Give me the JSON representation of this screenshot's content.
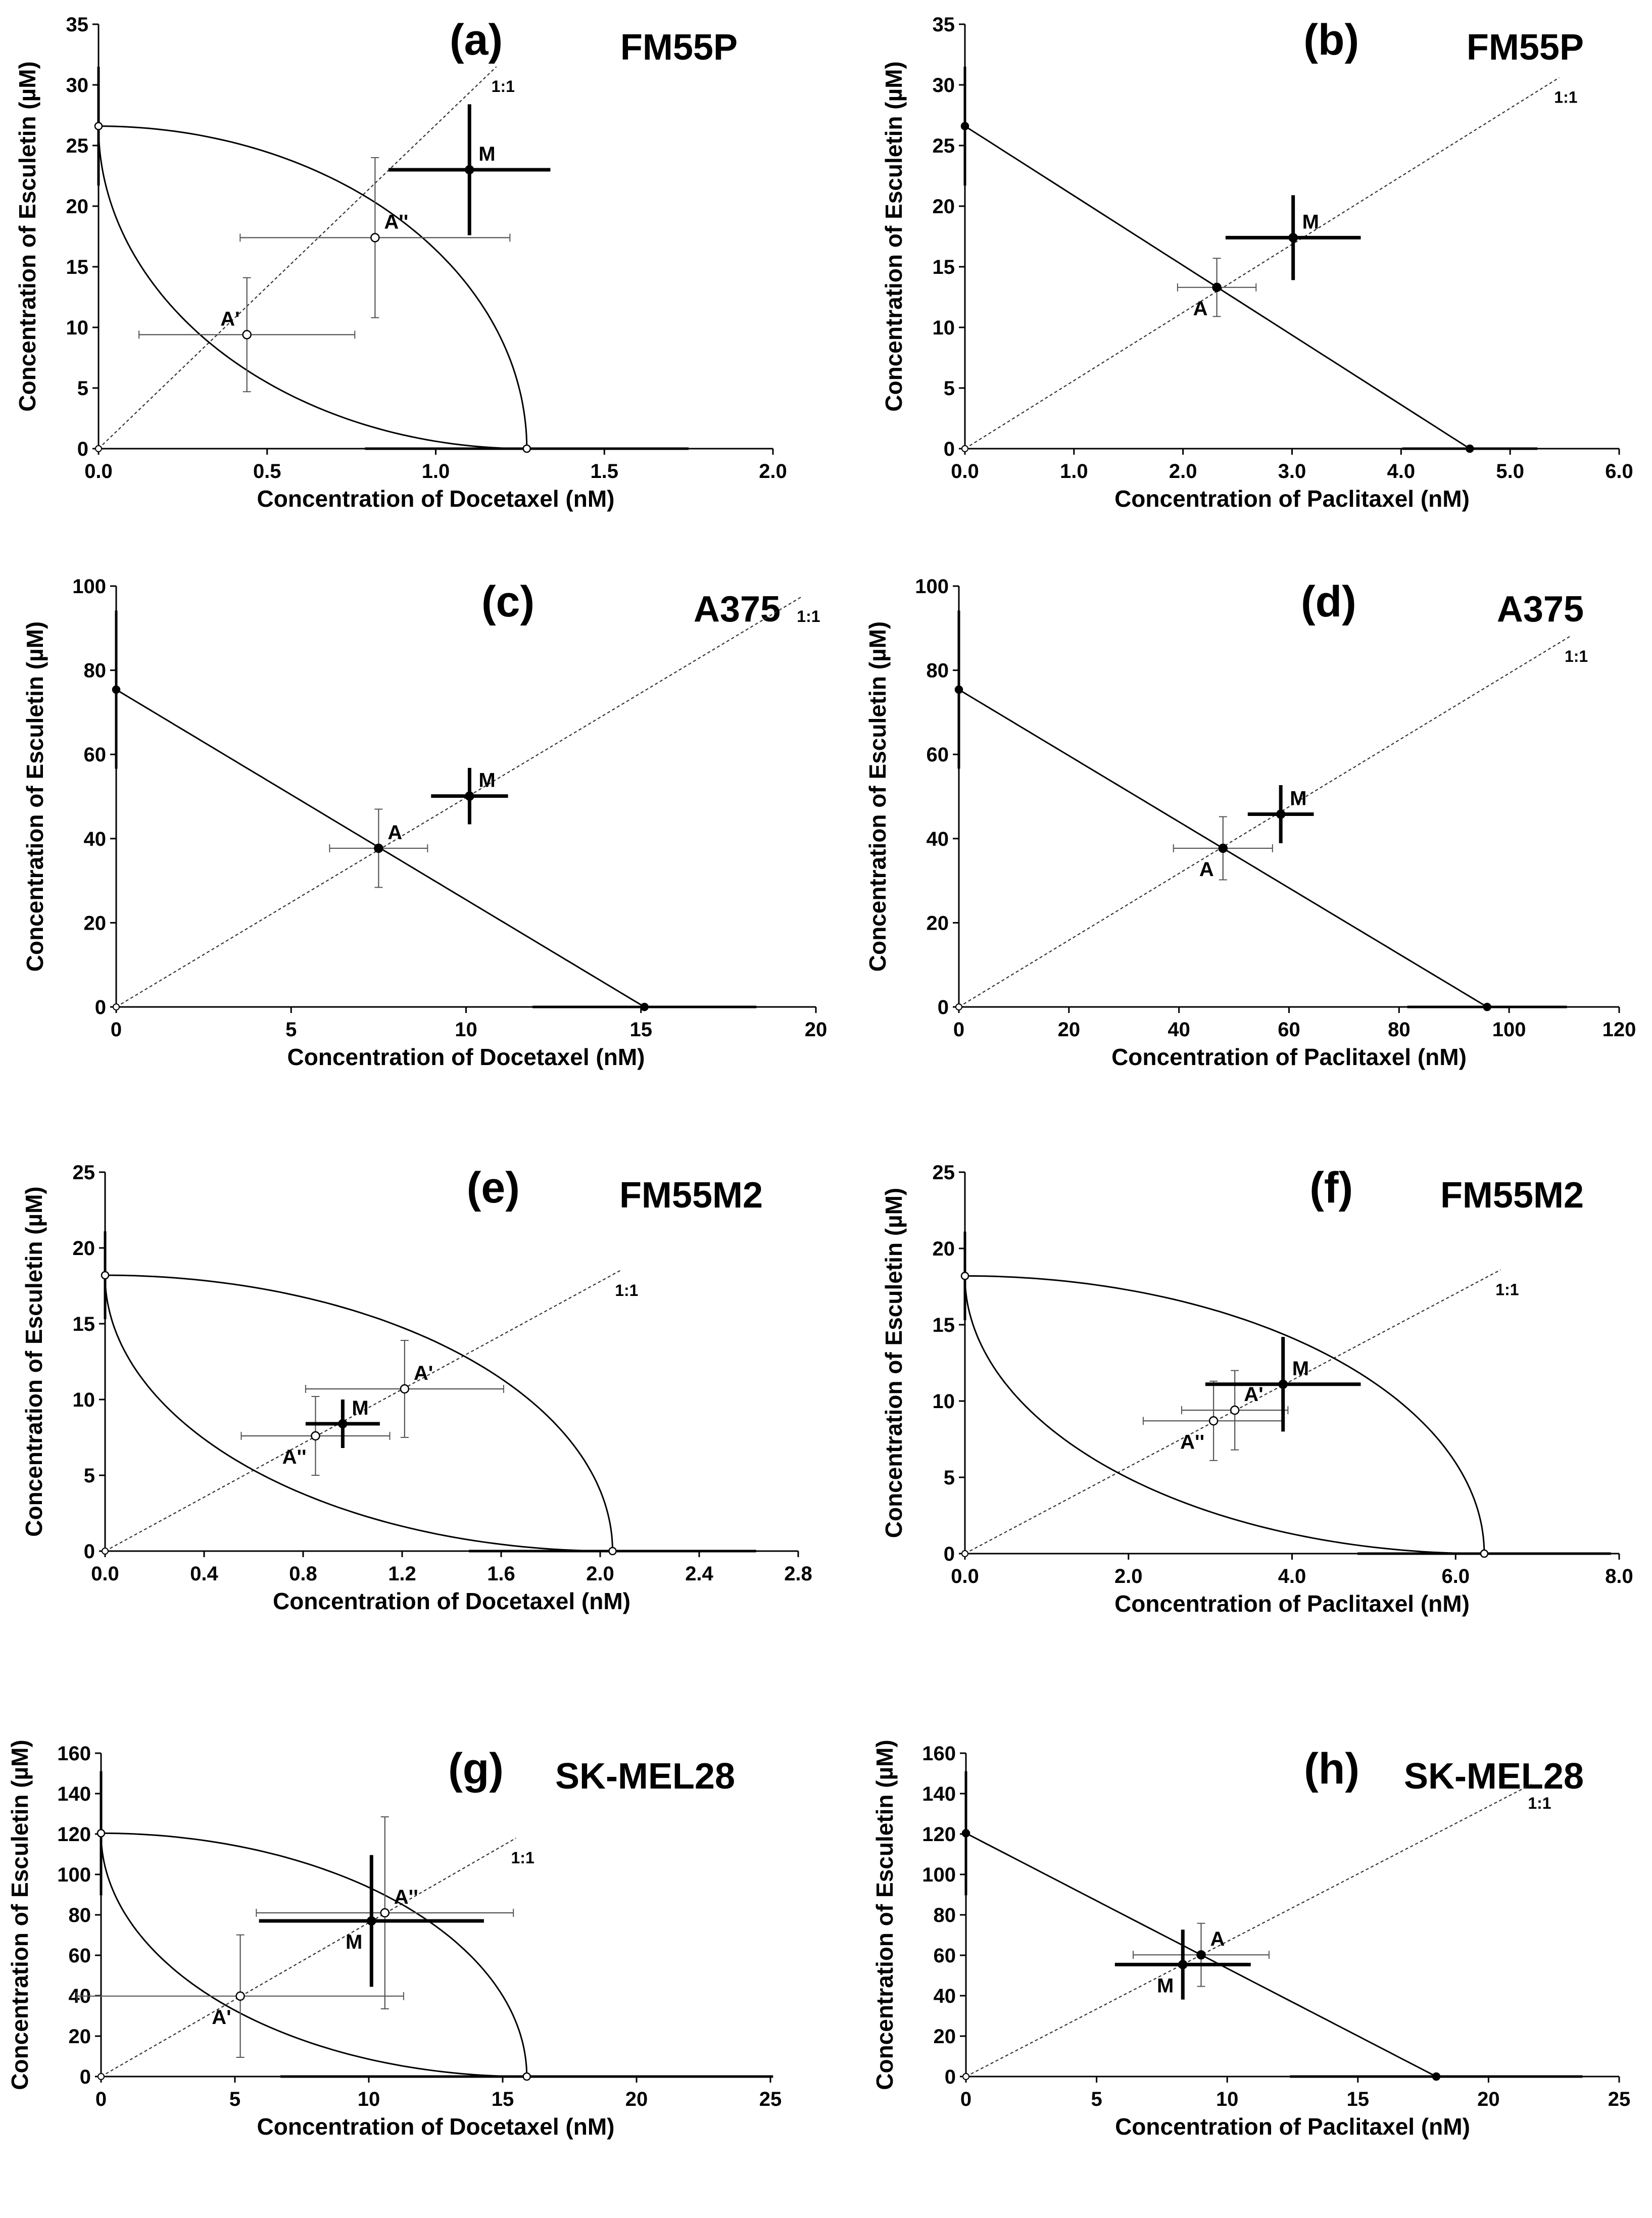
{
  "chart_data": [
    {
      "type": "line",
      "panel_label": "(a)",
      "cell_line": "FM55P",
      "xlabel": "Concentration of Docetaxel (nM)",
      "ylabel": "Concentration of Esculetin (µM)",
      "xlim": [
        0,
        2.0
      ],
      "ylim": [
        0,
        35
      ],
      "xticks": [
        "0.0",
        "0.5",
        "1.0",
        "1.5",
        "2.0"
      ],
      "yticks": [
        "0",
        "5",
        "10",
        "15",
        "20",
        "25",
        "30",
        "35"
      ],
      "x_ec50": 1.27,
      "y_ec50": 26.6,
      "x_sd": 0.48,
      "y_sd": 4.9,
      "ratio_label": "1:1",
      "ratio_end": [
        1.18,
        31.5
      ],
      "isoboles": [
        "upper",
        "lower"
      ],
      "points": [
        {
          "label": "A'",
          "x": 0.44,
          "y": 9.4,
          "sx": 0.32,
          "sy": 4.7,
          "style": "open",
          "label_pos": "upper-left"
        },
        {
          "label": "A''",
          "x": 0.82,
          "y": 17.4,
          "sx": 0.4,
          "sy": 6.6,
          "style": "open",
          "label_pos": "upper-right"
        },
        {
          "label": "M",
          "x": 1.1,
          "y": 23.0,
          "sx": 0.24,
          "sy": 5.4,
          "style": "bold",
          "label_pos": "upper-right"
        }
      ]
    },
    {
      "type": "line",
      "panel_label": "(b)",
      "cell_line": "FM55P",
      "xlabel": "Concentration of Paclitaxel (nM)",
      "ylabel": "Concentration of Esculetin (µM)",
      "xlim": [
        0,
        6.0
      ],
      "ylim": [
        0,
        35
      ],
      "xticks": [
        "0.0",
        "1.0",
        "2.0",
        "3.0",
        "4.0",
        "5.0",
        "6.0"
      ],
      "yticks": [
        "0",
        "5",
        "10",
        "15",
        "20",
        "25",
        "30",
        "35"
      ],
      "x_ec50": 4.63,
      "y_ec50": 26.6,
      "x_sd": 0.62,
      "y_sd": 4.9,
      "ratio_label": "1:1",
      "ratio_end": [
        5.45,
        30.6
      ],
      "isoboles": [
        "linear"
      ],
      "points": [
        {
          "label": "A",
          "x": 2.31,
          "y": 13.3,
          "sx": 0.36,
          "sy": 2.4,
          "style": "filled",
          "label_pos": "lower-left"
        },
        {
          "label": "M",
          "x": 3.01,
          "y": 17.4,
          "sx": 0.62,
          "sy": 3.5,
          "style": "bold",
          "label_pos": "upper-right"
        }
      ]
    },
    {
      "type": "line",
      "panel_label": "(c)",
      "cell_line": "A375",
      "xlabel": "Concentration of Docetaxel (nM)",
      "ylabel": "Concentration of Esculetin (µM)",
      "xlim": [
        0,
        20
      ],
      "ylim": [
        0,
        100
      ],
      "xticks": [
        "0",
        "5",
        "10",
        "15",
        "20"
      ],
      "yticks": [
        "0",
        "20",
        "40",
        "60",
        "80",
        "100"
      ],
      "x_ec50": 15.1,
      "y_ec50": 75.4,
      "x_sd": 3.2,
      "y_sd": 18.8,
      "ratio_label": "1:1",
      "ratio_end": [
        19.6,
        97.5
      ],
      "isoboles": [
        "linear"
      ],
      "points": [
        {
          "label": "A",
          "x": 7.5,
          "y": 37.7,
          "sx": 1.4,
          "sy": 9.3,
          "style": "filled",
          "label_pos": "upper-right"
        },
        {
          "label": "M",
          "x": 10.1,
          "y": 50.1,
          "sx": 1.1,
          "sy": 6.7,
          "style": "bold",
          "label_pos": "upper-right"
        }
      ]
    },
    {
      "type": "line",
      "panel_label": "(d)",
      "cell_line": "A375",
      "xlabel": "Concentration of Paclitaxel (nM)",
      "ylabel": "Concentration of Esculetin (µM)",
      "xlim": [
        0,
        120
      ],
      "ylim": [
        0,
        100
      ],
      "xticks": [
        "0",
        "20",
        "40",
        "60",
        "80",
        "100",
        "120"
      ],
      "yticks": [
        "0",
        "20",
        "40",
        "60",
        "80",
        "100"
      ],
      "x_ec50": 96.0,
      "y_ec50": 75.4,
      "x_sd": 14.5,
      "y_sd": 18.8,
      "ratio_label": "1:1",
      "ratio_end": [
        111,
        88
      ],
      "isoboles": [
        "linear"
      ],
      "points": [
        {
          "label": "A",
          "x": 48.0,
          "y": 37.7,
          "sx": 9.0,
          "sy": 7.5,
          "style": "filled",
          "label_pos": "lower-left"
        },
        {
          "label": "M",
          "x": 58.5,
          "y": 45.8,
          "sx": 6.0,
          "sy": 6.9,
          "style": "bold",
          "label_pos": "upper-right"
        }
      ]
    },
    {
      "type": "line",
      "panel_label": "(e)",
      "cell_line": "FM55M2",
      "xlabel": "Concentration of Docetaxel (nM)",
      "ylabel": "Concentration of Esculetin (µM)",
      "xlim": [
        0,
        2.8
      ],
      "ylim": [
        0,
        25
      ],
      "xticks": [
        "0.0",
        "0.4",
        "0.8",
        "1.2",
        "1.6",
        "2.0",
        "2.4",
        "2.8"
      ],
      "yticks": [
        "0",
        "5",
        "10",
        "15",
        "20",
        "25"
      ],
      "x_ec50": 2.05,
      "y_ec50": 18.2,
      "x_sd": 0.58,
      "y_sd": 2.9,
      "ratio_label": "1:1",
      "ratio_end": [
        2.08,
        18.5
      ],
      "isoboles": [
        "upper",
        "lower"
      ],
      "points": [
        {
          "label": "A'",
          "x": 1.21,
          "y": 10.7,
          "sx": 0.4,
          "sy": 3.2,
          "style": "open",
          "label_pos": "upper-right"
        },
        {
          "label": "A''",
          "x": 0.85,
          "y": 7.6,
          "sx": 0.3,
          "sy": 2.6,
          "style": "open",
          "label_pos": "lower-left"
        },
        {
          "label": "M",
          "x": 0.96,
          "y": 8.4,
          "sx": 0.15,
          "sy": 1.6,
          "style": "bold",
          "label_pos": "upper-right"
        }
      ]
    },
    {
      "type": "line",
      "panel_label": "(f)",
      "cell_line": "FM55M2",
      "xlabel": "Concentration of Paclitaxel (nM)",
      "ylabel": "Concentration of Esculetin (µM)",
      "xlim": [
        0,
        8.0
      ],
      "ylim": [
        0,
        25
      ],
      "xticks": [
        "0.0",
        "2.0",
        "4.0",
        "6.0",
        "8.0"
      ],
      "yticks": [
        "0",
        "5",
        "10",
        "15",
        "20",
        "25"
      ],
      "x_ec50": 6.35,
      "y_ec50": 18.2,
      "x_sd": 1.55,
      "y_sd": 2.9,
      "ratio_label": "1:1",
      "ratio_end": [
        6.55,
        18.6
      ],
      "isoboles": [
        "upper",
        "lower"
      ],
      "points": [
        {
          "label": "A'",
          "x": 3.3,
          "y": 9.4,
          "sx": 0.65,
          "sy": 2.6,
          "style": "open",
          "label_pos": "upper-right"
        },
        {
          "label": "A''",
          "x": 3.04,
          "y": 8.7,
          "sx": 0.86,
          "sy": 2.6,
          "style": "open",
          "label_pos": "lower-left"
        },
        {
          "label": "M",
          "x": 3.89,
          "y": 11.1,
          "sx": 0.95,
          "sy": 3.1,
          "style": "bold",
          "label_pos": "upper-right"
        }
      ]
    },
    {
      "type": "line",
      "panel_label": "(g)",
      "cell_line": "SK-MEL28",
      "xlabel": "Concentration of Docetaxel (nM)",
      "ylabel": "Concentration of Esculetin (µM)",
      "xlim": [
        0,
        25
      ],
      "ylim": [
        0,
        160
      ],
      "xticks": [
        "0",
        "5",
        "10",
        "15",
        "20",
        "25"
      ],
      "yticks": [
        "0",
        "20",
        "40",
        "60",
        "80",
        "100",
        "120",
        "140",
        "160"
      ],
      "x_ec50": 15.9,
      "y_ec50": 120.4,
      "x_sd": 9.2,
      "y_sd": 30.7,
      "ratio_label": "1:1",
      "ratio_end": [
        15.5,
        118
      ],
      "isoboles": [
        "upper",
        "lower"
      ],
      "points": [
        {
          "label": "A'",
          "x": 5.2,
          "y": 39.8,
          "sx": 6.1,
          "sy": 30.3,
          "style": "open",
          "label_pos": "lower-left"
        },
        {
          "label": "A''",
          "x": 10.6,
          "y": 81.0,
          "sx": 4.8,
          "sy": 47.5,
          "style": "open",
          "label_pos": "upper-right"
        },
        {
          "label": "M",
          "x": 10.1,
          "y": 77.0,
          "sx": 4.2,
          "sy": 32.6,
          "style": "bold",
          "label_pos": "lower-left"
        }
      ]
    },
    {
      "type": "line",
      "panel_label": "(h)",
      "cell_line": "SK-MEL28",
      "xlabel": "Concentration of Paclitaxel (nM)",
      "ylabel": "Concentration of Esculetin (µM)",
      "xlim": [
        0,
        25
      ],
      "ylim": [
        0,
        160
      ],
      "xticks": [
        "0",
        "5",
        "10",
        "15",
        "20",
        "25"
      ],
      "yticks": [
        "0",
        "20",
        "40",
        "60",
        "80",
        "100",
        "120",
        "140",
        "160"
      ],
      "x_ec50": 18.0,
      "y_ec50": 120.4,
      "x_sd": 5.6,
      "y_sd": 30.7,
      "ratio_label": "1:1",
      "ratio_end": [
        21.7,
        145
      ],
      "isoboles": [
        "linear"
      ],
      "points": [
        {
          "label": "A",
          "x": 9.0,
          "y": 60.2,
          "sx": 2.6,
          "sy": 15.6,
          "style": "filled",
          "label_pos": "upper-right"
        },
        {
          "label": "M",
          "x": 8.3,
          "y": 55.4,
          "sx": 2.6,
          "sy": 17.3,
          "style": "bold",
          "label_pos": "lower-left"
        }
      ]
    }
  ]
}
